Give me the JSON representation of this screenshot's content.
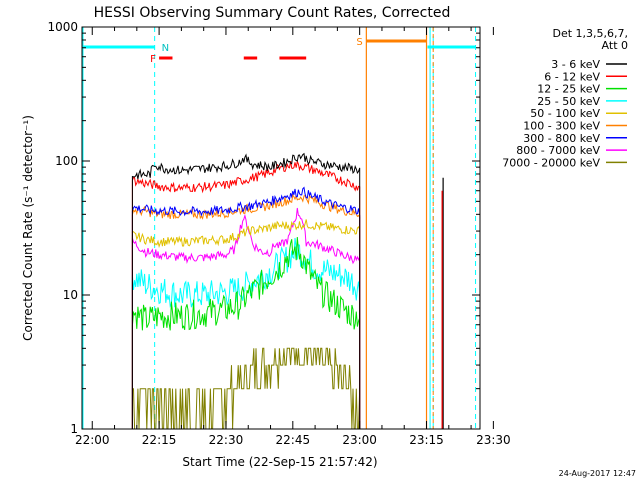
{
  "chart_data": {
    "type": "line",
    "title": "HESSI Observing Summary Count Rates, Corrected",
    "xlabel": "Start Time (22-Sep-15 21:57:42)",
    "ylabel": "Corrected Count Rate (s⁻¹ detector⁻¹)",
    "y_scale": "log",
    "ylim": [
      1,
      1000
    ],
    "y_ticks": [
      "1",
      "10",
      "100",
      "1000"
    ],
    "x_ticks": [
      "22:00",
      "22:15",
      "22:30",
      "22:45",
      "23:00",
      "23:15",
      "23:30"
    ],
    "xlim_minutes": [
      -2.3,
      87.0
    ],
    "legend_title": [
      "Det 1,3,5,6,7,",
      "Att 0"
    ],
    "legend_position": "right",
    "timestamp": "24-Aug-2017 12:47",
    "series": [
      {
        "name": "3 - 6 keV",
        "color": "#000000",
        "points": [
          [
            9,
            78
          ],
          [
            13,
            80
          ],
          [
            14,
            95
          ],
          [
            16,
            88
          ],
          [
            20,
            85
          ],
          [
            25,
            88
          ],
          [
            30,
            92
          ],
          [
            33,
            98
          ],
          [
            34,
            105
          ],
          [
            36,
            95
          ],
          [
            40,
            90
          ],
          [
            44,
            100
          ],
          [
            46,
            108
          ],
          [
            47,
            110
          ],
          [
            49,
            100
          ],
          [
            52,
            95
          ],
          [
            56,
            90
          ],
          [
            60,
            86
          ]
        ]
      },
      {
        "name": "6 - 12 keV",
        "color": "#ff0000",
        "points": [
          [
            9,
            72
          ],
          [
            12,
            68
          ],
          [
            16,
            64
          ],
          [
            20,
            63
          ],
          [
            25,
            64
          ],
          [
            30,
            66
          ],
          [
            34,
            72
          ],
          [
            38,
            78
          ],
          [
            42,
            88
          ],
          [
            45,
            94
          ],
          [
            47,
            92
          ],
          [
            50,
            85
          ],
          [
            53,
            78
          ],
          [
            57,
            70
          ],
          [
            60,
            63
          ]
        ]
      },
      {
        "name": "12 - 25 keV",
        "color": "#00e000",
        "points": [
          [
            9,
            7.5
          ],
          [
            12,
            6.5
          ],
          [
            15,
            7
          ],
          [
            20,
            7
          ],
          [
            25,
            7.3
          ],
          [
            30,
            7.8
          ],
          [
            33,
            8.5
          ],
          [
            35,
            10
          ],
          [
            38,
            12
          ],
          [
            40,
            14
          ],
          [
            42,
            16
          ],
          [
            44,
            20
          ],
          [
            46,
            22
          ],
          [
            47,
            20
          ],
          [
            49,
            14
          ],
          [
            51,
            11
          ],
          [
            53,
            9.5
          ],
          [
            56,
            8
          ],
          [
            58,
            7.2
          ],
          [
            60,
            7
          ]
        ]
      },
      {
        "name": "25 - 50 keV",
        "color": "#00ffff",
        "points": [
          [
            9,
            14
          ],
          [
            12,
            12
          ],
          [
            15,
            11
          ],
          [
            20,
            10
          ],
          [
            25,
            10
          ],
          [
            30,
            10.5
          ],
          [
            33,
            11
          ],
          [
            35,
            12
          ],
          [
            38,
            14
          ],
          [
            40,
            15
          ],
          [
            42,
            17
          ],
          [
            44,
            19
          ],
          [
            46,
            22
          ],
          [
            48,
            19
          ],
          [
            50,
            16
          ],
          [
            53,
            15
          ],
          [
            56,
            14
          ],
          [
            58,
            13
          ],
          [
            60,
            11
          ]
        ]
      },
      {
        "name": "50 - 100 keV",
        "color": "#e0c000",
        "points": [
          [
            9,
            28
          ],
          [
            12,
            26
          ],
          [
            15,
            25
          ],
          [
            20,
            25
          ],
          [
            25,
            25.5
          ],
          [
            30,
            26
          ],
          [
            33,
            28
          ],
          [
            35,
            30
          ],
          [
            38,
            31
          ],
          [
            40,
            32
          ],
          [
            42,
            33
          ],
          [
            45,
            33
          ],
          [
            48,
            34
          ],
          [
            50,
            33
          ],
          [
            53,
            32
          ],
          [
            56,
            31
          ],
          [
            60,
            30
          ]
        ]
      },
      {
        "name": "100 - 300 keV",
        "color": "#ff8000",
        "points": [
          [
            9,
            43
          ],
          [
            12,
            42
          ],
          [
            15,
            40
          ],
          [
            20,
            40
          ],
          [
            25,
            40
          ],
          [
            30,
            41
          ],
          [
            33,
            43
          ],
          [
            35,
            44
          ],
          [
            38,
            45
          ],
          [
            40,
            47
          ],
          [
            42,
            49
          ],
          [
            45,
            52
          ],
          [
            47,
            54
          ],
          [
            49,
            52
          ],
          [
            51,
            49
          ],
          [
            53,
            46
          ],
          [
            56,
            43
          ],
          [
            60,
            40
          ]
        ]
      },
      {
        "name": "300 - 800 keV",
        "color": "#0000ff",
        "points": [
          [
            9,
            45
          ],
          [
            13,
            43
          ],
          [
            20,
            42
          ],
          [
            25,
            42
          ],
          [
            30,
            43
          ],
          [
            33,
            45
          ],
          [
            35,
            46
          ],
          [
            38,
            48
          ],
          [
            40,
            50
          ],
          [
            42,
            53
          ],
          [
            45,
            57
          ],
          [
            47,
            60
          ],
          [
            49,
            55
          ],
          [
            52,
            50
          ],
          [
            55,
            46
          ],
          [
            58,
            44
          ],
          [
            60,
            42
          ]
        ]
      },
      {
        "name": "800 - 7000 keV",
        "color": "#ff00ff",
        "points": [
          [
            9,
            25
          ],
          [
            12,
            21
          ],
          [
            15,
            20
          ],
          [
            20,
            19
          ],
          [
            25,
            19
          ],
          [
            30,
            20
          ],
          [
            32,
            22
          ],
          [
            33,
            30
          ],
          [
            34,
            38
          ],
          [
            35,
            32
          ],
          [
            36,
            24
          ],
          [
            38,
            21
          ],
          [
            40,
            21
          ],
          [
            41,
            24
          ],
          [
            42,
            23
          ],
          [
            44,
            26
          ],
          [
            46,
            42
          ],
          [
            47,
            38
          ],
          [
            48,
            25
          ],
          [
            50,
            24
          ],
          [
            53,
            22
          ],
          [
            56,
            20
          ],
          [
            60,
            18
          ]
        ]
      },
      {
        "name": "7000 - 20000 keV",
        "color": "#808000",
        "points": [
          [
            9,
            2
          ],
          [
            10,
            1.5
          ],
          [
            12,
            2
          ],
          [
            14,
            1.7
          ],
          [
            16,
            1.5
          ],
          [
            18,
            1.6
          ],
          [
            20,
            1.4
          ],
          [
            22,
            1.5
          ],
          [
            24,
            1.6
          ],
          [
            26,
            1.4
          ],
          [
            28,
            1.5
          ],
          [
            30,
            1.7
          ],
          [
            32,
            2
          ],
          [
            34,
            2.4
          ],
          [
            36,
            2.7
          ],
          [
            38,
            3
          ],
          [
            40,
            3.2
          ],
          [
            42,
            3.5
          ],
          [
            44,
            3.8
          ],
          [
            46,
            3.9
          ],
          [
            48,
            3.7
          ],
          [
            50,
            3.4
          ],
          [
            52,
            3
          ],
          [
            54,
            2.6
          ],
          [
            56,
            2.3
          ],
          [
            58,
            1.9
          ],
          [
            60,
            1.6
          ]
        ]
      }
    ],
    "second_segment": {
      "black_points": [
        [
          78.5,
          75
        ],
        [
          78.5,
          1
        ]
      ],
      "red_points": [
        [
          78.5,
          60
        ],
        [
          78.5,
          1
        ]
      ]
    },
    "flags": {
      "saa_label": "S",
      "night_label": "N",
      "flare_label": "F",
      "night_bands": [
        [
          -2.3,
          14
        ],
        [
          75,
          86
        ]
      ],
      "saa_band": [
        61.5,
        75
      ],
      "flare_segments": [
        [
          15,
          18
        ],
        [
          34,
          37
        ],
        [
          42,
          48
        ]
      ],
      "night_dashed_lines": [
        14,
        76.5,
        86
      ],
      "saa_solid_lines": [
        61.5,
        75
      ]
    }
  }
}
